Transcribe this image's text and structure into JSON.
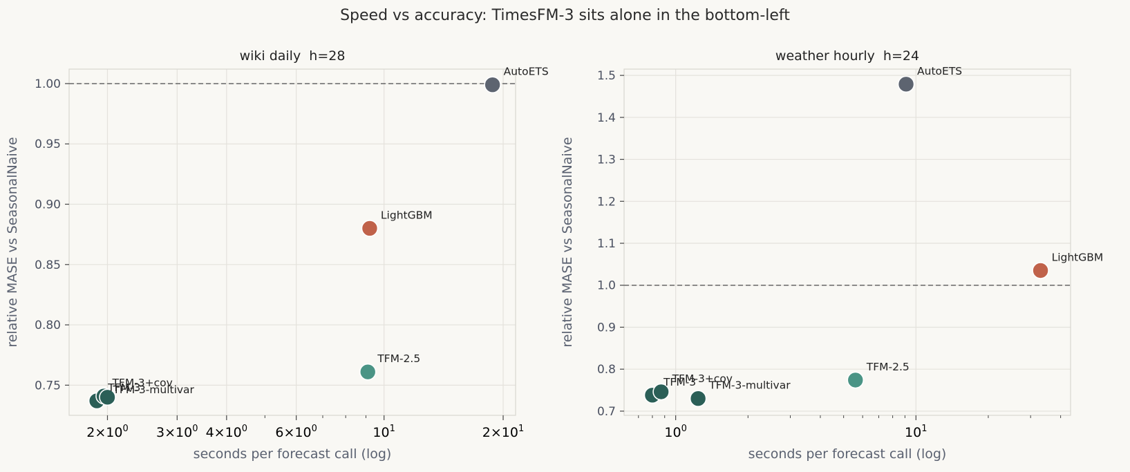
{
  "suptitle": "Speed vs accuracy: TimesFM-3 sits alone in the bottom-left",
  "colors": {
    "AutoETS": "#5d6470",
    "LightGBM": "#c0624a",
    "TFM-2.5": "#4a9485",
    "TFM-3": "#2b5f57",
    "TFM-3+cov": "#2b5f57",
    "TFM-3-multivar": "#2b5f57",
    "grid": "#e4e2dc",
    "frame": "#d8d6d0",
    "refline": "#666666"
  },
  "chart_data": [
    {
      "type": "scatter",
      "title": "wiki daily  h=28",
      "xlabel": "seconds per forecast call (log)",
      "ylabel": "relative MASE vs SeasonalNaive",
      "xscale": "log",
      "xlim": [
        1.6,
        21.5
      ],
      "ylim": [
        0.725,
        1.012
      ],
      "xticks": [
        {
          "v": 2,
          "mant": "2",
          "exp": "0"
        },
        {
          "v": 3,
          "mant": "3",
          "exp": "0"
        },
        {
          "v": 4,
          "mant": "4",
          "exp": "0"
        },
        {
          "v": 6,
          "mant": "6",
          "exp": "0"
        },
        {
          "v": 10,
          "mant": "",
          "exp": "1"
        },
        {
          "v": 20,
          "mant": "2",
          "exp": "1"
        }
      ],
      "yticks": [
        {
          "v": 0.75,
          "label": "0.75"
        },
        {
          "v": 0.8,
          "label": "0.80"
        },
        {
          "v": 0.85,
          "label": "0.85"
        },
        {
          "v": 0.9,
          "label": "0.90"
        },
        {
          "v": 0.95,
          "label": "0.95"
        },
        {
          "v": 1.0,
          "label": "1.00"
        }
      ],
      "refline": 1.0,
      "grid": true,
      "points": [
        {
          "name": "AutoETS",
          "x": 18.8,
          "y": 0.999
        },
        {
          "name": "LightGBM",
          "x": 9.2,
          "y": 0.88
        },
        {
          "name": "TFM-2.5",
          "x": 9.1,
          "y": 0.761
        },
        {
          "name": "TFM-3",
          "x": 1.88,
          "y": 0.737
        },
        {
          "name": "TFM-3+cov",
          "x": 1.96,
          "y": 0.741
        },
        {
          "name": "TFM-3-multivar",
          "x": 2.0,
          "y": 0.74
        }
      ]
    },
    {
      "type": "scatter",
      "title": "weather hourly  h=24",
      "xlabel": "seconds per forecast call (log)",
      "ylabel": "relative MASE vs SeasonalNaive",
      "xscale": "log",
      "xlim": [
        0.61,
        44
      ],
      "ylim": [
        0.69,
        1.515
      ],
      "xticks": [
        {
          "v": 1,
          "mant": "",
          "exp": "0"
        },
        {
          "v": 10,
          "mant": "",
          "exp": "1"
        }
      ],
      "yticks": [
        {
          "v": 0.7,
          "label": "0.7"
        },
        {
          "v": 0.8,
          "label": "0.8"
        },
        {
          "v": 0.9,
          "label": "0.9"
        },
        {
          "v": 1.0,
          "label": "1.0"
        },
        {
          "v": 1.1,
          "label": "1.1"
        },
        {
          "v": 1.2,
          "label": "1.2"
        },
        {
          "v": 1.3,
          "label": "1.3"
        },
        {
          "v": 1.4,
          "label": "1.4"
        },
        {
          "v": 1.5,
          "label": "1.5"
        }
      ],
      "refline": 1.0,
      "grid": true,
      "points": [
        {
          "name": "AutoETS",
          "x": 9.1,
          "y": 1.479
        },
        {
          "name": "LightGBM",
          "x": 33.0,
          "y": 1.035
        },
        {
          "name": "TFM-2.5",
          "x": 5.6,
          "y": 0.774
        },
        {
          "name": "TFM-3",
          "x": 0.8,
          "y": 0.738
        },
        {
          "name": "TFM-3+cov",
          "x": 0.87,
          "y": 0.746
        },
        {
          "name": "TFM-3-multivar",
          "x": 1.24,
          "y": 0.73
        }
      ]
    }
  ]
}
